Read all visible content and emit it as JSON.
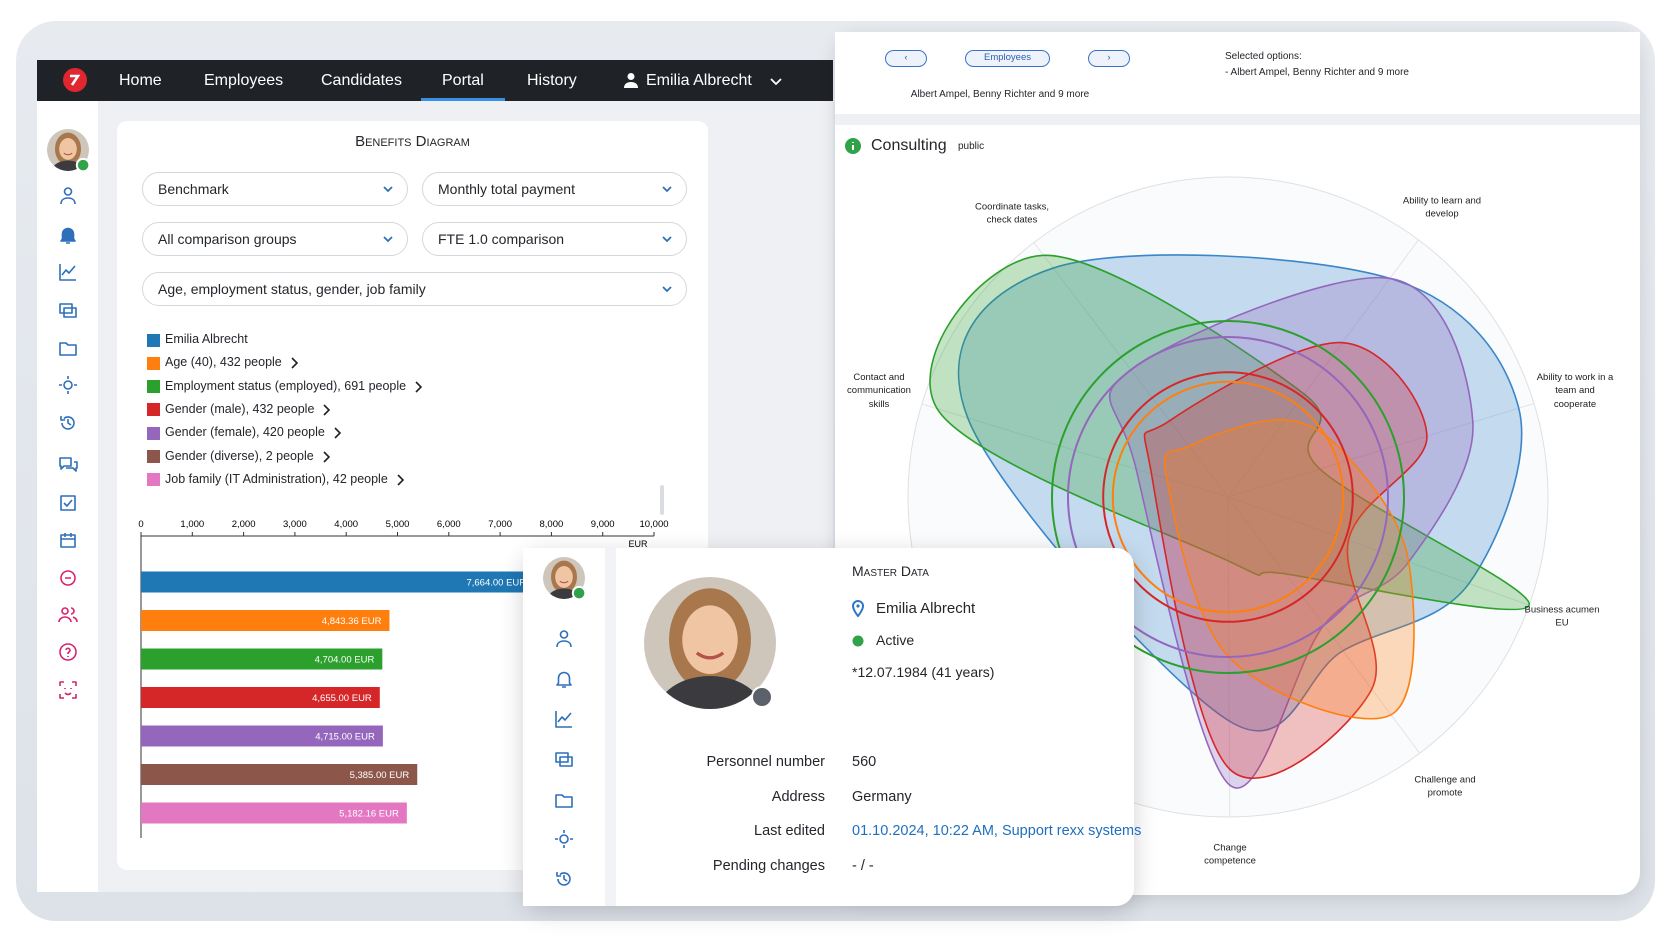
{
  "nav": {
    "items": [
      "Home",
      "Employees",
      "Candidates",
      "Portal",
      "History"
    ],
    "user": "Emilia Albrecht"
  },
  "benefits": {
    "filters": [
      "Benchmark",
      "Monthly total payment",
      "All comparison groups",
      "FTE 1.0 comparison",
      "Age, employment status, gender, job family"
    ]
  },
  "chart_data": [
    {
      "type": "barh",
      "title": "Benefits Diagram",
      "categories": [
        "Emilia Albrecht",
        "Age (40), 432 people",
        "Employment status (employed), 691 people",
        "Gender (male), 432 people",
        "Gender (female), 420 people",
        "Gender (diverse), 2 people",
        "Job family (IT Administration), 42 people"
      ],
      "values": [
        7664,
        4843.36,
        4704,
        4655,
        4715,
        5385,
        5182.16
      ],
      "value_labels": [
        "7,664.00 EUR",
        "4,843.36 EUR",
        "4,704.00 EUR",
        "4,655.00 EUR",
        "4,715.00 EUR",
        "5,385.00 EUR",
        "5,182.16 EUR"
      ],
      "colors": [
        "#1f77b4",
        "#ff7f0e",
        "#2ca02c",
        "#d62728",
        "#9467bd",
        "#8c564b",
        "#e377c2"
      ],
      "xlim": [
        0,
        10000
      ],
      "xticks": [
        0,
        {
          "value": 1000,
          "label": "1,000"
        },
        {
          "value": 2000,
          "label": "2,000"
        },
        {
          "value": 3000,
          "label": "3,000"
        },
        {
          "value": 4000,
          "label": "4,000"
        },
        {
          "value": 5000,
          "label": "5,000"
        },
        {
          "value": 6000,
          "label": "6,000"
        },
        {
          "value": 7000,
          "label": "7,000"
        },
        {
          "value": 8000,
          "label": "8,000"
        },
        {
          "value": 9000,
          "label": "9,000"
        },
        {
          "value": 10000,
          "label": "10,000"
        }
      ],
      "xlabel": "EUR"
    },
    {
      "type": "radar",
      "axes": [
        "Coordinate tasks, check dates",
        "Ability to learn and develop",
        "Ability to work in a team and cooperate",
        "Business acumen EU",
        "Challenge and promote",
        "Change competence",
        "Contact and communication skills"
      ],
      "rlim": [
        0,
        10
      ],
      "series": [
        {
          "color": "#3a86c8",
          "values": [
            9,
            8.5,
            9.5,
            8,
            6,
            7,
            8.5
          ]
        },
        {
          "color": "#2ca02c",
          "values": [
            9.5,
            4,
            3,
            10,
            3,
            2,
            9.5
          ]
        },
        {
          "color": "#9467bd",
          "values": [
            5,
            8.5,
            8,
            6,
            5,
            9,
            3
          ]
        },
        {
          "color": "#d62728",
          "values": [
            3,
            6,
            6.5,
            4,
            7.5,
            8.5,
            2.5
          ]
        },
        {
          "color": "#ff7f0e",
          "values": [
            2,
            3,
            4,
            6,
            8.5,
            5,
            2
          ]
        }
      ],
      "rings": [
        {
          "color": "#2ca02c",
          "value": 5.5
        },
        {
          "color": "#9467bd",
          "value": 5
        },
        {
          "color": "#d62728",
          "value": 3.9
        },
        {
          "color": "#ff7f0e",
          "value": 3.6
        }
      ]
    }
  ],
  "radar_header": {
    "button": "Employees",
    "selection": "Albert Ampel, Benny Richter and 9 more",
    "selected_title": "Selected options:",
    "selected_items": [
      "- Albert Ampel, Benny Richter and 9 more"
    ],
    "group": "Consulting",
    "visibility": "public"
  },
  "master_data": {
    "title": "Master Data",
    "name": "Emilia Albrecht",
    "status": "Active",
    "birth": "*12.07.1984 (41 years)",
    "fields": [
      {
        "label": "Personnel number",
        "value": "560"
      },
      {
        "label": "Address",
        "value": "Germany"
      },
      {
        "label": "Last edited",
        "value": "01.10.2024, 10:22 AM, Support rexx systems"
      },
      {
        "label": "Pending changes",
        "value": "- / -"
      }
    ]
  }
}
